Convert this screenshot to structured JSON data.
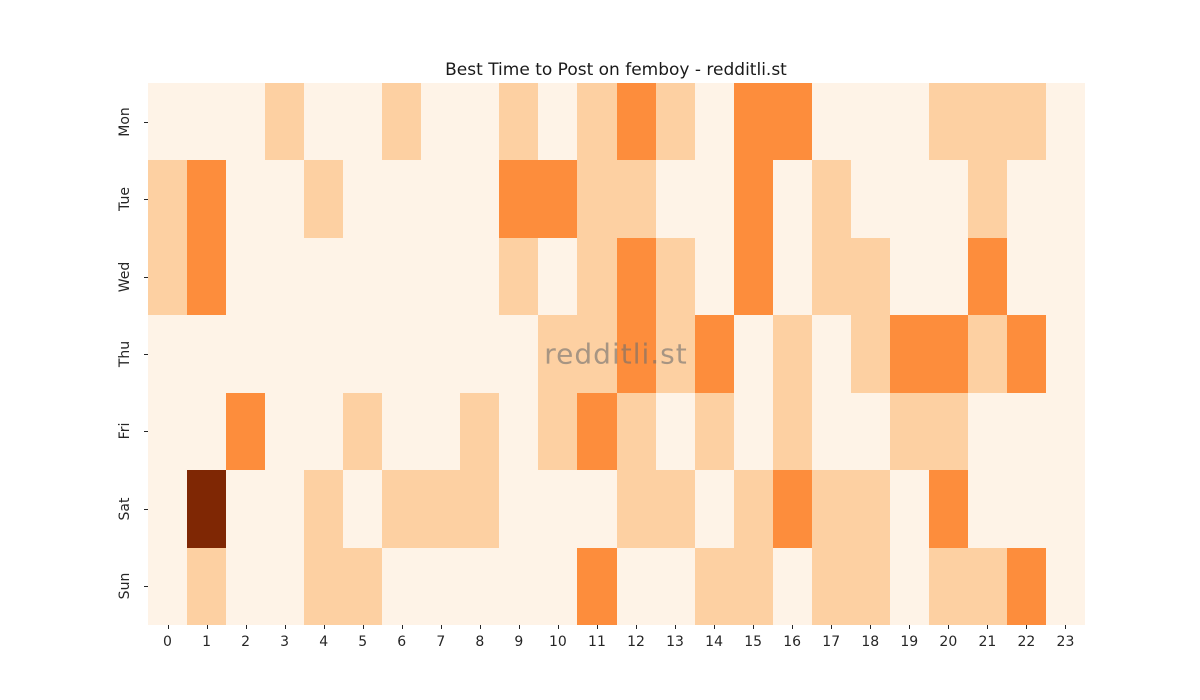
{
  "figure": {
    "title": "Best Time to Post on femboy - redditli.st",
    "watermark": "redditli.st",
    "background": "#ffffff"
  },
  "chart_data": {
    "type": "heatmap",
    "title": "Best Time to Post on femboy - redditli.st",
    "xlabel": "",
    "ylabel": "",
    "x_categories": [
      "0",
      "1",
      "2",
      "3",
      "4",
      "5",
      "6",
      "7",
      "8",
      "9",
      "10",
      "11",
      "12",
      "13",
      "14",
      "15",
      "16",
      "17",
      "18",
      "19",
      "20",
      "21",
      "22",
      "23"
    ],
    "y_categories": [
      "Mon",
      "Tue",
      "Wed",
      "Thu",
      "Fri",
      "Sat",
      "Sun"
    ],
    "colormap": "Oranges",
    "legend_position": "none",
    "grid": false,
    "palette": {
      "0": "#fef3e7",
      "1": "#fdd0a2",
      "2": "#fd8d3c",
      "3": "#7f2704"
    },
    "values": [
      [
        0,
        0,
        0,
        1,
        0,
        0,
        1,
        0,
        0,
        1,
        0,
        1,
        2,
        1,
        0,
        2,
        2,
        0,
        0,
        0,
        1,
        1,
        1,
        0
      ],
      [
        1,
        2,
        0,
        0,
        1,
        0,
        0,
        0,
        0,
        2,
        2,
        1,
        1,
        0,
        0,
        2,
        0,
        1,
        0,
        0,
        0,
        1,
        0,
        0
      ],
      [
        1,
        2,
        0,
        0,
        0,
        0,
        0,
        0,
        0,
        1,
        0,
        1,
        2,
        1,
        0,
        2,
        0,
        1,
        1,
        0,
        0,
        2,
        0,
        0
      ],
      [
        0,
        0,
        0,
        0,
        0,
        0,
        0,
        0,
        0,
        0,
        1,
        1,
        2,
        1,
        2,
        0,
        1,
        0,
        1,
        2,
        2,
        1,
        2,
        0
      ],
      [
        0,
        0,
        2,
        0,
        0,
        1,
        0,
        0,
        1,
        0,
        1,
        2,
        1,
        0,
        1,
        0,
        1,
        0,
        0,
        1,
        1,
        0,
        0,
        0
      ],
      [
        0,
        3,
        0,
        0,
        1,
        0,
        1,
        1,
        1,
        0,
        0,
        0,
        1,
        1,
        0,
        1,
        2,
        1,
        1,
        0,
        2,
        0,
        0,
        0
      ],
      [
        0,
        1,
        0,
        0,
        1,
        1,
        0,
        0,
        0,
        0,
        0,
        2,
        0,
        0,
        1,
        1,
        0,
        1,
        1,
        0,
        1,
        1,
        2,
        0
      ]
    ]
  }
}
